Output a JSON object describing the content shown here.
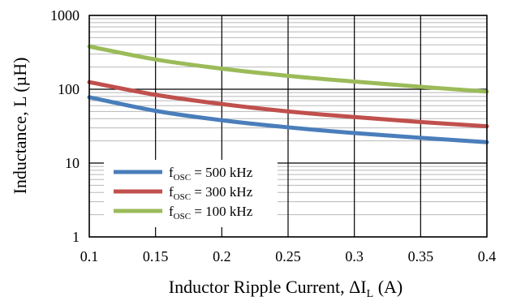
{
  "chart_data": {
    "type": "line",
    "title": "",
    "xlabel": {
      "text": "Inductor Ripple Current, ΔI",
      "sub": "L",
      "suffix": " (A)"
    },
    "ylabel": "Inductance, L (µH)",
    "x_scale": "linear",
    "y_scale": "log",
    "xlim": [
      0.1,
      0.4
    ],
    "ylim": [
      1,
      1000
    ],
    "x_ticks": [
      "0.1",
      "0.15",
      "0.2",
      "0.25",
      "0.3",
      "0.35",
      "0.4"
    ],
    "y_ticks": [
      "1",
      "10",
      "100",
      "1000"
    ],
    "grid": "on",
    "legend_position": "lower-left",
    "series": [
      {
        "name": {
          "prefix": "f",
          "sub": "OSC",
          "suffix": " = 500 kHz"
        },
        "color": "#4a7ebb",
        "x": [
          0.1,
          0.15,
          0.2,
          0.25,
          0.3,
          0.35,
          0.4
        ],
        "y": [
          78,
          51,
          38,
          30.5,
          25.5,
          22,
          19.2
        ]
      },
      {
        "name": {
          "prefix": "f",
          "sub": "OSC",
          "suffix": " = 300 kHz"
        },
        "color": "#c0504d",
        "x": [
          0.1,
          0.15,
          0.2,
          0.25,
          0.3,
          0.35,
          0.4
        ],
        "y": [
          125,
          84,
          63,
          50,
          42,
          36,
          31.5
        ]
      },
      {
        "name": {
          "prefix": "f",
          "sub": "OSC",
          "suffix": " = 100 kHz"
        },
        "color": "#9bbb59",
        "x": [
          0.1,
          0.15,
          0.2,
          0.25,
          0.3,
          0.35,
          0.4
        ],
        "y": [
          380,
          253,
          190,
          152,
          127,
          108,
          93
        ]
      }
    ]
  }
}
